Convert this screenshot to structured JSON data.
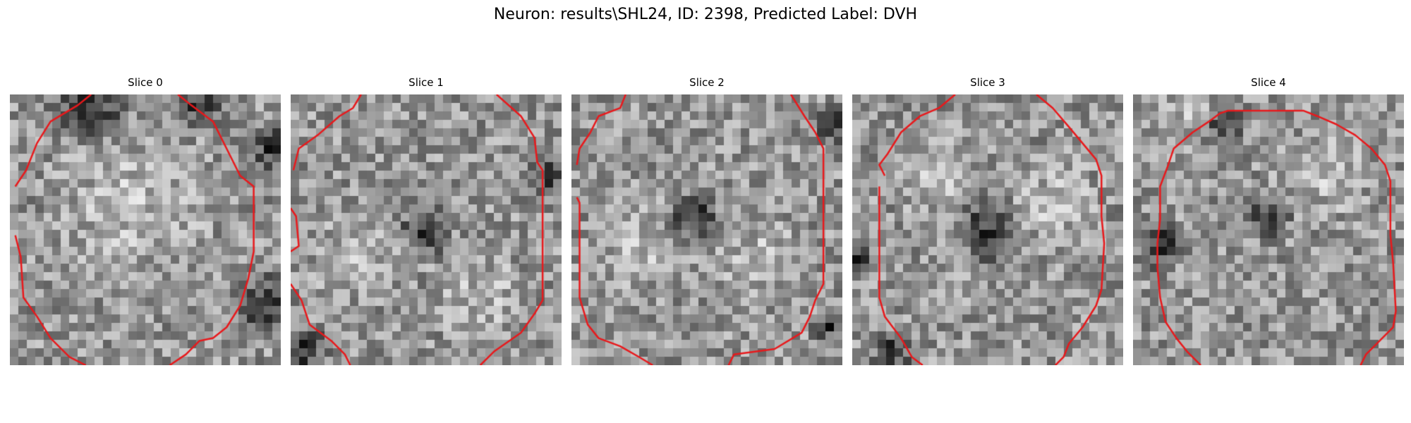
{
  "figure": {
    "title": "Neuron: results\\SHL24, ID: 2398, Predicted Label: DVH"
  },
  "colors": {
    "contour": "#e8191c",
    "background": "#ffffff",
    "colormap": "gray"
  },
  "slices": [
    {
      "title": "Slice 0",
      "seed": 11,
      "dark_regions": [
        [
          0.3,
          0.05,
          0.18
        ],
        [
          0.95,
          0.78,
          0.15
        ],
        [
          0.97,
          0.2,
          0.12
        ],
        [
          0.7,
          0.05,
          0.1
        ]
      ],
      "bright_regions": [
        [
          0.45,
          0.4,
          0.35
        ]
      ],
      "contour": [
        [
          0.62,
          0.0
        ],
        [
          0.67,
          0.04
        ],
        [
          0.75,
          0.1
        ],
        [
          0.8,
          0.2
        ],
        [
          0.85,
          0.3
        ],
        [
          0.9,
          0.34
        ],
        [
          0.9,
          0.58
        ],
        [
          0.88,
          0.68
        ],
        [
          0.85,
          0.78
        ],
        [
          0.8,
          0.86
        ],
        [
          0.75,
          0.9
        ],
        [
          0.7,
          0.91
        ],
        [
          0.65,
          0.96
        ],
        [
          0.59,
          1.0
        ]
      ],
      "contour2": [
        [
          0.3,
          0.0
        ],
        [
          0.25,
          0.04
        ],
        [
          0.15,
          0.1
        ],
        [
          0.1,
          0.18
        ],
        [
          0.06,
          0.28
        ],
        [
          0.02,
          0.34
        ]
      ],
      "contour3": [
        [
          0.02,
          0.52
        ],
        [
          0.04,
          0.6
        ],
        [
          0.05,
          0.75
        ],
        [
          0.1,
          0.82
        ],
        [
          0.15,
          0.9
        ],
        [
          0.22,
          0.97
        ],
        [
          0.28,
          1.0
        ]
      ]
    },
    {
      "title": "Slice 1",
      "seed": 23,
      "dark_regions": [
        [
          0.5,
          0.5,
          0.12
        ],
        [
          0.05,
          0.95,
          0.12
        ],
        [
          0.95,
          0.3,
          0.08
        ]
      ],
      "bright_regions": [
        [
          0.25,
          0.6,
          0.2
        ],
        [
          0.7,
          0.75,
          0.2
        ]
      ],
      "contour": [
        [
          0.76,
          0.0
        ],
        [
          0.85,
          0.08
        ],
        [
          0.9,
          0.16
        ],
        [
          0.91,
          0.25
        ],
        [
          0.93,
          0.28
        ],
        [
          0.93,
          0.76
        ],
        [
          0.9,
          0.81
        ],
        [
          0.85,
          0.88
        ],
        [
          0.75,
          0.95
        ],
        [
          0.7,
          1.0
        ]
      ],
      "contour2": [
        [
          0.26,
          0.0
        ],
        [
          0.23,
          0.05
        ],
        [
          0.18,
          0.08
        ],
        [
          0.1,
          0.15
        ],
        [
          0.03,
          0.2
        ],
        [
          0.01,
          0.28
        ]
      ],
      "contour3": [
        [
          0.0,
          0.42
        ],
        [
          0.02,
          0.45
        ],
        [
          0.03,
          0.56
        ],
        [
          0.0,
          0.58
        ]
      ],
      "contour4": [
        [
          0.0,
          0.7
        ],
        [
          0.04,
          0.76
        ],
        [
          0.07,
          0.85
        ],
        [
          0.15,
          0.91
        ],
        [
          0.2,
          0.96
        ],
        [
          0.22,
          1.0
        ]
      ]
    },
    {
      "title": "Slice 2",
      "seed": 37,
      "dark_regions": [
        [
          0.45,
          0.45,
          0.12
        ],
        [
          0.98,
          0.12,
          0.1
        ],
        [
          0.95,
          0.85,
          0.08
        ]
      ],
      "bright_regions": [
        [
          0.25,
          0.55,
          0.2
        ],
        [
          0.7,
          0.6,
          0.2
        ]
      ],
      "contour": [
        [
          0.81,
          0.0
        ],
        [
          0.86,
          0.08
        ],
        [
          0.9,
          0.14
        ],
        [
          0.93,
          0.2
        ],
        [
          0.93,
          0.7
        ],
        [
          0.9,
          0.76
        ],
        [
          0.88,
          0.82
        ],
        [
          0.85,
          0.88
        ],
        [
          0.75,
          0.94
        ],
        [
          0.6,
          0.96
        ],
        [
          0.58,
          1.0
        ]
      ],
      "contour2": [
        [
          0.2,
          0.0
        ],
        [
          0.18,
          0.05
        ],
        [
          0.1,
          0.08
        ],
        [
          0.07,
          0.14
        ],
        [
          0.03,
          0.2
        ],
        [
          0.02,
          0.26
        ]
      ],
      "contour3": [
        [
          0.02,
          0.38
        ],
        [
          0.03,
          0.4
        ],
        [
          0.03,
          0.75
        ],
        [
          0.06,
          0.85
        ],
        [
          0.1,
          0.9
        ],
        [
          0.18,
          0.93
        ],
        [
          0.25,
          0.97
        ],
        [
          0.3,
          1.0
        ]
      ]
    },
    {
      "title": "Slice 3",
      "seed": 49,
      "dark_regions": [
        [
          0.5,
          0.5,
          0.15
        ],
        [
          0.15,
          0.95,
          0.1
        ],
        [
          0.02,
          0.6,
          0.08
        ]
      ],
      "bright_regions": [
        [
          0.3,
          0.3,
          0.2
        ],
        [
          0.75,
          0.4,
          0.2
        ]
      ],
      "contour": [
        [
          0.68,
          0.0
        ],
        [
          0.74,
          0.05
        ],
        [
          0.8,
          0.12
        ],
        [
          0.85,
          0.18
        ],
        [
          0.9,
          0.24
        ],
        [
          0.92,
          0.3
        ],
        [
          0.92,
          0.45
        ],
        [
          0.93,
          0.55
        ],
        [
          0.92,
          0.72
        ],
        [
          0.9,
          0.78
        ],
        [
          0.85,
          0.86
        ],
        [
          0.8,
          0.92
        ],
        [
          0.78,
          0.97
        ],
        [
          0.75,
          1.0
        ]
      ],
      "contour2": [
        [
          0.38,
          0.0
        ],
        [
          0.32,
          0.05
        ],
        [
          0.25,
          0.08
        ],
        [
          0.18,
          0.14
        ],
        [
          0.13,
          0.22
        ],
        [
          0.1,
          0.26
        ],
        [
          0.12,
          0.3
        ]
      ],
      "contour3": [
        [
          0.1,
          0.34
        ],
        [
          0.1,
          0.38
        ],
        [
          0.1,
          0.75
        ],
        [
          0.12,
          0.82
        ],
        [
          0.18,
          0.9
        ],
        [
          0.22,
          0.97
        ],
        [
          0.26,
          1.0
        ]
      ]
    },
    {
      "title": "Slice 4",
      "seed": 61,
      "dark_regions": [
        [
          0.1,
          0.55,
          0.12
        ],
        [
          0.5,
          0.45,
          0.1
        ],
        [
          0.35,
          0.1,
          0.1
        ]
      ],
      "bright_regions": [
        [
          0.2,
          0.05,
          0.12
        ],
        [
          0.7,
          0.3,
          0.2
        ]
      ],
      "contour": [
        [
          0.28,
          0.1
        ],
        [
          0.32,
          0.07
        ],
        [
          0.35,
          0.06
        ],
        [
          0.63,
          0.06
        ],
        [
          0.68,
          0.08
        ],
        [
          0.75,
          0.11
        ],
        [
          0.82,
          0.15
        ],
        [
          0.88,
          0.2
        ],
        [
          0.93,
          0.26
        ],
        [
          0.95,
          0.32
        ],
        [
          0.95,
          0.52
        ],
        [
          0.96,
          0.62
        ],
        [
          0.97,
          0.8
        ],
        [
          0.96,
          0.86
        ],
        [
          0.9,
          0.92
        ],
        [
          0.86,
          0.96
        ],
        [
          0.84,
          1.0
        ]
      ],
      "contour2": [
        [
          0.28,
          0.1
        ],
        [
          0.22,
          0.14
        ],
        [
          0.15,
          0.2
        ],
        [
          0.13,
          0.26
        ],
        [
          0.1,
          0.34
        ],
        [
          0.1,
          0.46
        ],
        [
          0.09,
          0.55
        ],
        [
          0.09,
          0.64
        ],
        [
          0.1,
          0.75
        ],
        [
          0.12,
          0.84
        ],
        [
          0.16,
          0.9
        ],
        [
          0.2,
          0.95
        ],
        [
          0.25,
          1.0
        ]
      ]
    }
  ]
}
